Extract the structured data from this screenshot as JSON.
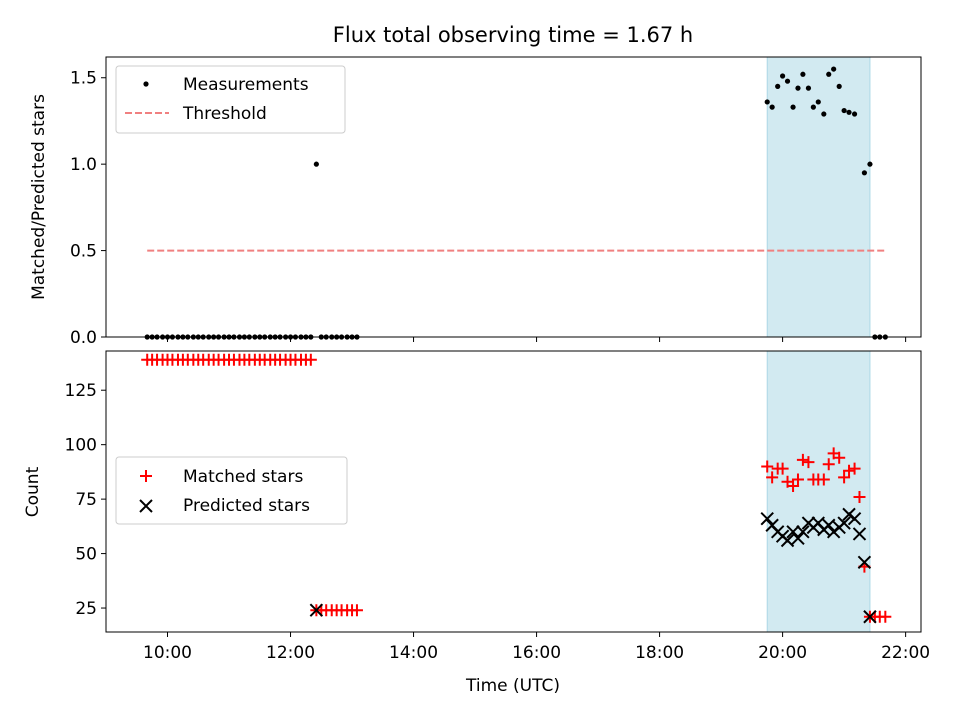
{
  "chart_data": [
    {
      "type": "scatter",
      "title": "Flux total observing time = 1.67 h",
      "xlabel": "",
      "ylabel": "Matched/Predicted stars",
      "ylim": [
        0,
        1.62
      ],
      "yticks": [
        "0.0",
        "0.5",
        "1.0",
        "1.5"
      ],
      "ytick_values": [
        0,
        0.5,
        1.0,
        1.5
      ],
      "xlim": [
        9.0,
        22.25
      ],
      "shaded_region": [
        19.75,
        21.42
      ],
      "shade_color": "#add8e6",
      "grid": false,
      "legend_position": "upper-left",
      "legend": [
        "Measurements",
        "Threshold"
      ],
      "threshold": {
        "name": "Threshold",
        "y": 0.5,
        "x": [
          9.67,
          21.67
        ],
        "color": "#f08080"
      },
      "series": [
        {
          "name": "Measurements",
          "color": "#000000",
          "x": [
            9.67,
            9.75,
            9.83,
            9.92,
            10.0,
            10.08,
            10.17,
            10.25,
            10.33,
            10.42,
            10.5,
            10.58,
            10.67,
            10.75,
            10.83,
            10.92,
            11.0,
            11.08,
            11.17,
            11.25,
            11.33,
            11.42,
            11.5,
            11.58,
            11.67,
            11.75,
            11.83,
            11.92,
            12.0,
            12.08,
            12.17,
            12.25,
            12.33,
            12.42,
            12.5,
            12.58,
            12.67,
            12.75,
            12.83,
            12.92,
            13.0,
            13.08,
            19.75,
            19.83,
            19.92,
            20.0,
            20.08,
            20.17,
            20.25,
            20.33,
            20.42,
            20.5,
            20.58,
            20.67,
            20.75,
            20.83,
            20.92,
            21.0,
            21.08,
            21.17,
            21.33,
            21.42,
            21.5,
            21.58,
            21.67
          ],
          "y": [
            0,
            0,
            0,
            0,
            0,
            0,
            0,
            0,
            0,
            0,
            0,
            0,
            0,
            0,
            0,
            0,
            0,
            0,
            0,
            0,
            0,
            0,
            0,
            0,
            0,
            0,
            0,
            0,
            0,
            0,
            0,
            0,
            0,
            1.0,
            0,
            0,
            0,
            0,
            0,
            0,
            0,
            0,
            1.36,
            1.33,
            1.45,
            1.51,
            1.48,
            1.33,
            1.44,
            1.52,
            1.44,
            1.33,
            1.36,
            1.29,
            1.52,
            1.55,
            1.45,
            1.31,
            1.3,
            1.29,
            0.95,
            1.0,
            0,
            0,
            0
          ]
        }
      ]
    },
    {
      "type": "scatter",
      "title": "",
      "xlabel": "Time (UTC)",
      "ylabel": "Count",
      "ylim": [
        14,
        143
      ],
      "yticks": [
        "25",
        "50",
        "75",
        "100",
        "125"
      ],
      "ytick_values": [
        25,
        50,
        75,
        100,
        125
      ],
      "xlim": [
        9.0,
        22.25
      ],
      "xticks": [
        "10:00",
        "12:00",
        "14:00",
        "16:00",
        "18:00",
        "20:00",
        "22:00"
      ],
      "xtick_values": [
        10,
        12,
        14,
        16,
        18,
        20,
        22
      ],
      "shaded_region": [
        19.75,
        21.42
      ],
      "shade_color": "#add8e6",
      "grid": false,
      "legend_position": "center-left",
      "legend": [
        "Matched stars",
        "Predicted stars"
      ],
      "series": [
        {
          "name": "Matched stars",
          "marker": "plus",
          "color": "#ff0000",
          "x": [
            9.67,
            9.75,
            9.83,
            9.92,
            10.0,
            10.08,
            10.17,
            10.25,
            10.33,
            10.42,
            10.5,
            10.58,
            10.67,
            10.75,
            10.83,
            10.92,
            11.0,
            11.08,
            11.17,
            11.25,
            11.33,
            11.42,
            11.5,
            11.58,
            11.67,
            11.75,
            11.83,
            11.92,
            12.0,
            12.08,
            12.17,
            12.25,
            12.33,
            12.42,
            12.5,
            12.58,
            12.67,
            12.75,
            12.83,
            12.92,
            13.0,
            13.08,
            19.75,
            19.83,
            19.92,
            20.0,
            20.08,
            20.17,
            20.25,
            20.33,
            20.42,
            20.5,
            20.58,
            20.67,
            20.75,
            20.83,
            20.92,
            21.0,
            21.08,
            21.17,
            21.25,
            21.33,
            21.42,
            21.5,
            21.58,
            21.67
          ],
          "y": [
            139,
            139,
            139,
            139,
            139,
            139,
            139,
            139,
            139,
            139,
            139,
            139,
            139,
            139,
            139,
            139,
            139,
            139,
            139,
            139,
            139,
            139,
            139,
            139,
            139,
            139,
            139,
            139,
            139,
            139,
            139,
            139,
            139,
            24,
            24,
            24,
            24,
            24,
            24,
            24,
            24,
            24,
            90,
            85,
            89,
            89,
            83,
            81,
            84,
            93,
            92,
            84,
            84,
            84,
            91,
            96,
            94,
            85,
            88,
            89,
            76,
            44,
            21,
            21,
            21,
            21
          ]
        },
        {
          "name": "Predicted stars",
          "marker": "x",
          "color": "#000000",
          "x": [
            12.42,
            19.75,
            19.83,
            19.92,
            20.0,
            20.08,
            20.17,
            20.25,
            20.33,
            20.42,
            20.5,
            20.58,
            20.67,
            20.75,
            20.83,
            20.92,
            21.0,
            21.08,
            21.17,
            21.25,
            21.33,
            21.42
          ],
          "y": [
            24,
            66,
            63,
            60,
            58,
            56,
            60,
            57,
            60,
            64,
            62,
            64,
            61,
            63,
            60,
            62,
            64,
            68,
            66,
            59,
            46,
            21
          ]
        }
      ]
    }
  ]
}
